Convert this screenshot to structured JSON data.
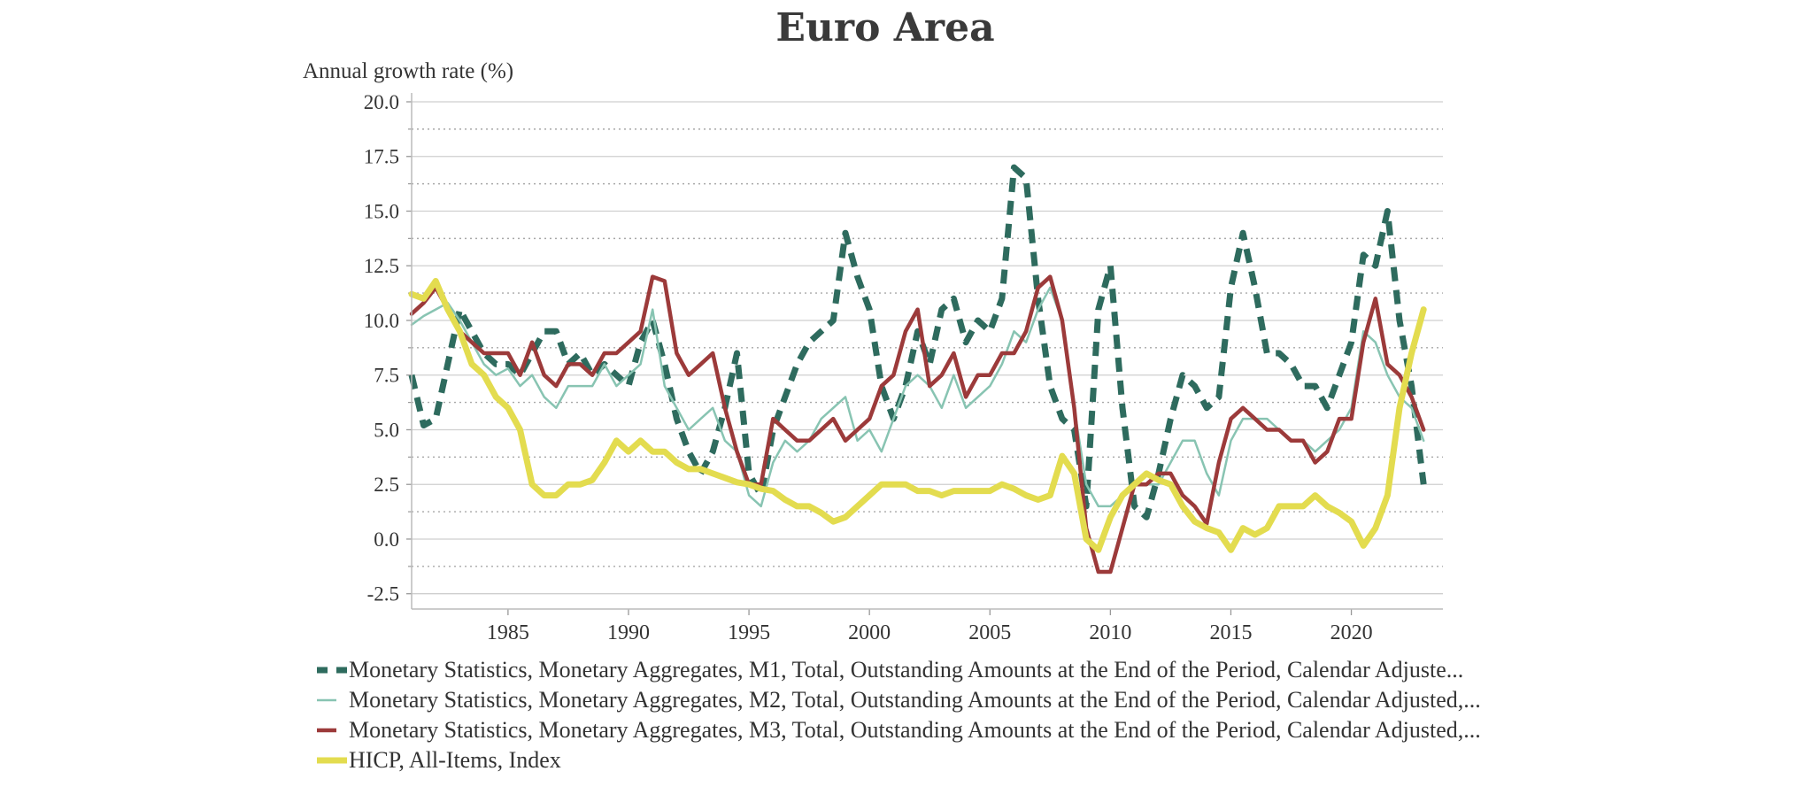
{
  "page": {
    "title": "Euro Area"
  },
  "chart_data": {
    "type": "line",
    "title": "Euro Area",
    "ylabel": "Annual growth rate (%)",
    "xlabel": "",
    "xlim": [
      1981.0,
      2023.8
    ],
    "ylim": [
      -3.2,
      20.0
    ],
    "yticks": [
      "20.0",
      "17.5",
      "15.0",
      "12.5",
      "10.0",
      "7.5",
      "5.0",
      "2.5",
      "0.0",
      "-2.5"
    ],
    "xticks": [
      "1985",
      "1990",
      "1995",
      "2000",
      "2005",
      "2010",
      "2015",
      "2020"
    ],
    "grid": true,
    "legend_position": "bottom",
    "series": [
      {
        "name": "Monetary Statistics, Monetary Aggregates, M1, Total, Outstanding Amounts at the End of the Period, Calendar Adjuste...",
        "color": "#2e6b5e",
        "style": "dashed",
        "width": 7,
        "x": [
          1981.0,
          1981.5,
          1982.0,
          1982.5,
          1983.0,
          1983.5,
          1984.0,
          1984.5,
          1985.0,
          1985.5,
          1986.0,
          1986.5,
          1987.0,
          1987.5,
          1988.0,
          1988.5,
          1989.0,
          1989.5,
          1990.0,
          1990.5,
          1991.0,
          1991.5,
          1992.0,
          1992.5,
          1993.0,
          1993.5,
          1994.0,
          1994.5,
          1995.0,
          1995.5,
          1996.0,
          1996.5,
          1997.0,
          1997.5,
          1998.0,
          1998.5,
          1999.0,
          1999.5,
          2000.0,
          2000.5,
          2001.0,
          2001.5,
          2002.0,
          2002.5,
          2003.0,
          2003.5,
          2004.0,
          2004.5,
          2005.0,
          2005.5,
          2006.0,
          2006.5,
          2007.0,
          2007.5,
          2008.0,
          2008.5,
          2009.0,
          2009.5,
          2010.0,
          2010.5,
          2011.0,
          2011.5,
          2012.0,
          2012.5,
          2013.0,
          2013.5,
          2014.0,
          2014.5,
          2015.0,
          2015.5,
          2016.0,
          2016.5,
          2017.0,
          2017.5,
          2018.0,
          2018.5,
          2019.0,
          2019.5,
          2020.0,
          2020.5,
          2021.0,
          2021.5,
          2022.0,
          2022.5,
          2023.0
        ],
        "y": [
          7.5,
          5.2,
          5.5,
          8.0,
          10.5,
          9.5,
          8.5,
          8.0,
          8.0,
          7.5,
          8.5,
          9.5,
          9.5,
          8.0,
          8.5,
          7.5,
          8.0,
          7.5,
          7.0,
          9.0,
          10.0,
          8.0,
          5.5,
          4.0,
          3.0,
          4.0,
          6.0,
          8.5,
          3.0,
          2.0,
          5.0,
          6.5,
          8.0,
          9.0,
          9.5,
          10.0,
          14.0,
          12.0,
          10.5,
          7.0,
          5.5,
          7.0,
          9.5,
          8.0,
          10.5,
          11.0,
          9.0,
          10.0,
          9.5,
          11.0,
          17.0,
          16.5,
          11.0,
          7.0,
          5.5,
          5.0,
          1.5,
          10.5,
          12.5,
          6.0,
          1.5,
          1.0,
          3.0,
          5.5,
          7.5,
          7.0,
          6.0,
          6.5,
          11.5,
          14.0,
          11.5,
          8.5,
          8.5,
          8.0,
          7.0,
          7.0,
          6.0,
          7.5,
          9.0,
          13.0,
          12.5,
          15.0,
          10.0,
          7.0,
          2.5
        ]
      },
      {
        "name": "Monetary Statistics, Monetary Aggregates, M2, Total, Outstanding Amounts at the End of the Period, Calendar Adjusted,...",
        "color": "#88c4b2",
        "style": "solid",
        "width": 2.5,
        "x": [
          1981.0,
          1981.5,
          1982.0,
          1982.5,
          1983.0,
          1983.5,
          1984.0,
          1984.5,
          1985.0,
          1985.5,
          1986.0,
          1986.5,
          1987.0,
          1987.5,
          1988.0,
          1988.5,
          1989.0,
          1989.5,
          1990.0,
          1990.5,
          1991.0,
          1991.5,
          1992.0,
          1992.5,
          1993.0,
          1993.5,
          1994.0,
          1994.5,
          1995.0,
          1995.5,
          1996.0,
          1996.5,
          1997.0,
          1997.5,
          1998.0,
          1998.5,
          1999.0,
          1999.5,
          2000.0,
          2000.5,
          2001.0,
          2001.5,
          2002.0,
          2002.5,
          2003.0,
          2003.5,
          2004.0,
          2004.5,
          2005.0,
          2005.5,
          2006.0,
          2006.5,
          2007.0,
          2007.5,
          2008.0,
          2008.5,
          2009.0,
          2009.5,
          2010.0,
          2010.5,
          2011.0,
          2011.5,
          2012.0,
          2012.5,
          2013.0,
          2013.5,
          2014.0,
          2014.5,
          2015.0,
          2015.5,
          2016.0,
          2016.5,
          2017.0,
          2017.5,
          2018.0,
          2018.5,
          2019.0,
          2019.5,
          2020.0,
          2020.5,
          2021.0,
          2021.5,
          2022.0,
          2022.5,
          2023.0
        ],
        "y": [
          9.8,
          10.2,
          10.5,
          10.8,
          10.0,
          9.0,
          8.0,
          7.5,
          7.8,
          7.0,
          7.5,
          6.5,
          6.0,
          7.0,
          7.0,
          7.0,
          8.0,
          7.0,
          7.5,
          8.0,
          10.5,
          7.0,
          6.0,
          5.0,
          5.5,
          6.0,
          4.5,
          4.0,
          2.0,
          1.5,
          3.5,
          4.5,
          4.0,
          4.5,
          5.5,
          6.0,
          6.5,
          4.5,
          5.0,
          4.0,
          5.5,
          7.0,
          7.5,
          7.0,
          6.0,
          7.5,
          6.0,
          6.5,
          7.0,
          8.0,
          9.5,
          9.0,
          10.5,
          11.5,
          10.0,
          6.0,
          2.5,
          1.5,
          1.5,
          2.0,
          2.5,
          2.5,
          2.5,
          3.5,
          4.5,
          4.5,
          3.0,
          2.0,
          4.5,
          5.5,
          5.5,
          5.5,
          5.0,
          4.5,
          4.5,
          4.0,
          4.5,
          5.0,
          6.0,
          9.5,
          9.0,
          7.5,
          6.5,
          6.0,
          4.5
        ]
      },
      {
        "name": "Monetary Statistics, Monetary Aggregates, M3, Total, Outstanding Amounts at the End of the Period, Calendar Adjusted,...",
        "color": "#9c3a3a",
        "style": "solid",
        "width": 4.5,
        "x": [
          1981.0,
          1981.5,
          1982.0,
          1982.5,
          1983.0,
          1983.5,
          1984.0,
          1984.5,
          1985.0,
          1985.5,
          1986.0,
          1986.5,
          1987.0,
          1987.5,
          1988.0,
          1988.5,
          1989.0,
          1989.5,
          1990.0,
          1990.5,
          1991.0,
          1991.5,
          1992.0,
          1992.5,
          1993.0,
          1993.5,
          1994.0,
          1994.5,
          1995.0,
          1995.5,
          1996.0,
          1996.5,
          1997.0,
          1997.5,
          1998.0,
          1998.5,
          1999.0,
          1999.5,
          2000.0,
          2000.5,
          2001.0,
          2001.5,
          2002.0,
          2002.5,
          2003.0,
          2003.5,
          2004.0,
          2004.5,
          2005.0,
          2005.5,
          2006.0,
          2006.5,
          2007.0,
          2007.5,
          2008.0,
          2008.5,
          2009.0,
          2009.5,
          2010.0,
          2010.5,
          2011.0,
          2011.5,
          2012.0,
          2012.5,
          2013.0,
          2013.5,
          2014.0,
          2014.5,
          2015.0,
          2015.5,
          2016.0,
          2016.5,
          2017.0,
          2017.5,
          2018.0,
          2018.5,
          2019.0,
          2019.5,
          2020.0,
          2020.5,
          2021.0,
          2021.5,
          2022.0,
          2022.5,
          2023.0
        ],
        "y": [
          10.3,
          10.8,
          11.5,
          10.5,
          9.5,
          9.0,
          8.5,
          8.5,
          8.5,
          7.5,
          9.0,
          7.5,
          7.0,
          8.0,
          8.0,
          7.5,
          8.5,
          8.5,
          9.0,
          9.5,
          12.0,
          11.8,
          8.5,
          7.5,
          8.0,
          8.5,
          6.0,
          4.0,
          2.5,
          2.5,
          5.5,
          5.0,
          4.5,
          4.5,
          5.0,
          5.5,
          4.5,
          5.0,
          5.5,
          7.0,
          7.5,
          9.5,
          10.5,
          7.0,
          7.5,
          8.5,
          6.5,
          7.5,
          7.5,
          8.5,
          8.5,
          9.5,
          11.5,
          12.0,
          10.0,
          6.0,
          0.5,
          -1.5,
          -1.5,
          0.5,
          2.5,
          2.5,
          3.0,
          3.0,
          2.0,
          1.5,
          0.7,
          3.5,
          5.5,
          6.0,
          5.5,
          5.0,
          5.0,
          4.5,
          4.5,
          3.5,
          4.0,
          5.5,
          5.5,
          9.0,
          11.0,
          8.0,
          7.5,
          6.5,
          5.0
        ]
      },
      {
        "name": "HICP, All-Items, Index",
        "color": "#e3dc4f",
        "style": "solid",
        "width": 7,
        "x": [
          1981.0,
          1981.5,
          1982.0,
          1982.5,
          1983.0,
          1983.5,
          1984.0,
          1984.5,
          1985.0,
          1985.5,
          1986.0,
          1986.5,
          1987.0,
          1987.5,
          1988.0,
          1988.5,
          1989.0,
          1989.5,
          1990.0,
          1990.5,
          1991.0,
          1991.5,
          1992.0,
          1992.5,
          1993.0,
          1993.5,
          1994.0,
          1994.5,
          1995.0,
          1995.5,
          1996.0,
          1996.5,
          1997.0,
          1997.5,
          1998.0,
          1998.5,
          1999.0,
          1999.5,
          2000.0,
          2000.5,
          2001.0,
          2001.5,
          2002.0,
          2002.5,
          2003.0,
          2003.5,
          2004.0,
          2004.5,
          2005.0,
          2005.5,
          2006.0,
          2006.5,
          2007.0,
          2007.5,
          2008.0,
          2008.5,
          2009.0,
          2009.5,
          2010.0,
          2010.5,
          2011.0,
          2011.5,
          2012.0,
          2012.5,
          2013.0,
          2013.5,
          2014.0,
          2014.5,
          2015.0,
          2015.5,
          2016.0,
          2016.5,
          2017.0,
          2017.5,
          2018.0,
          2018.5,
          2019.0,
          2019.5,
          2020.0,
          2020.5,
          2021.0,
          2021.5,
          2022.0,
          2022.5,
          2023.0
        ],
        "y": [
          11.2,
          11.0,
          11.8,
          10.5,
          9.5,
          8.0,
          7.5,
          6.5,
          6.0,
          5.0,
          2.5,
          2.0,
          2.0,
          2.5,
          2.5,
          2.7,
          3.5,
          4.5,
          4.0,
          4.5,
          4.0,
          4.0,
          3.5,
          3.2,
          3.2,
          3.0,
          2.8,
          2.6,
          2.5,
          2.3,
          2.2,
          1.8,
          1.5,
          1.5,
          1.2,
          0.8,
          1.0,
          1.5,
          2.0,
          2.5,
          2.5,
          2.5,
          2.2,
          2.2,
          2.0,
          2.2,
          2.2,
          2.2,
          2.2,
          2.5,
          2.3,
          2.0,
          1.8,
          2.0,
          3.8,
          3.0,
          0.0,
          -0.5,
          1.0,
          2.0,
          2.5,
          3.0,
          2.7,
          2.5,
          1.5,
          0.8,
          0.5,
          0.3,
          -0.5,
          0.5,
          0.2,
          0.5,
          1.5,
          1.5,
          1.5,
          2.0,
          1.5,
          1.2,
          0.8,
          -0.3,
          0.5,
          2.0,
          6.0,
          8.5,
          10.5
        ]
      }
    ]
  }
}
